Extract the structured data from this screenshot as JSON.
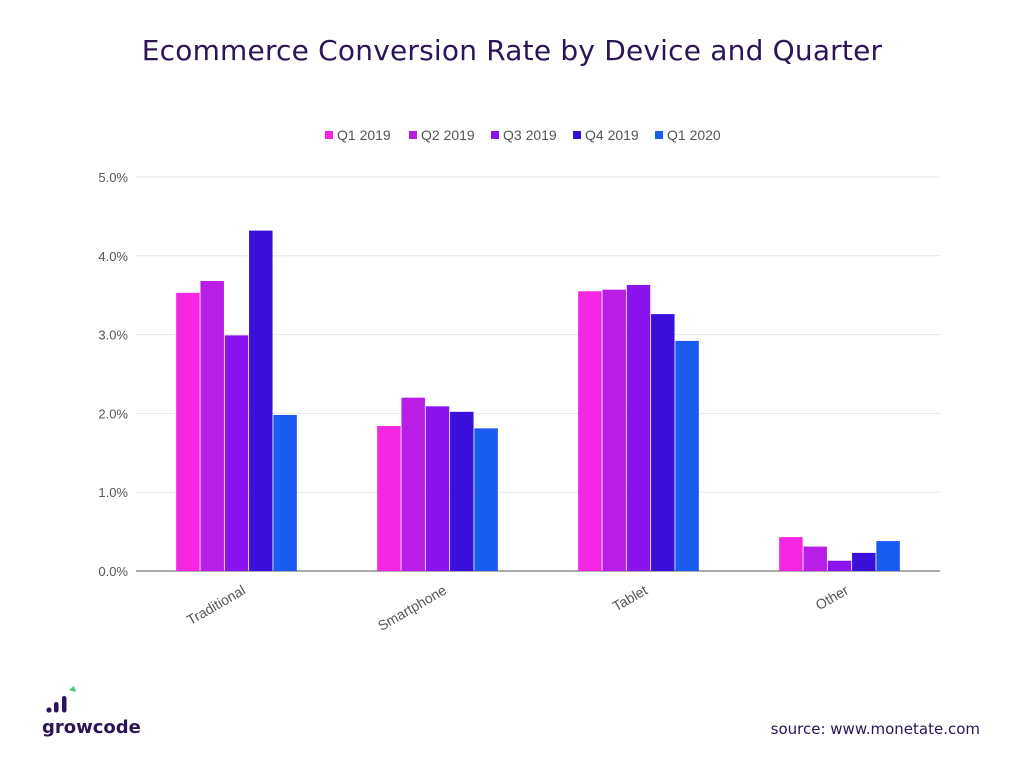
{
  "chart_data": {
    "type": "bar",
    "title": "Ecommerce Conversion Rate by Device and Quarter",
    "categories": [
      "Traditional",
      "Smartphone",
      "Tablet",
      "Other"
    ],
    "series": [
      {
        "name": "Q1 2019",
        "color": "#f527e3",
        "values": [
          3.53,
          1.84,
          3.55,
          0.43
        ]
      },
      {
        "name": "Q2 2019",
        "color": "#b91ee6",
        "values": [
          3.68,
          2.2,
          3.57,
          0.31
        ]
      },
      {
        "name": "Q3 2019",
        "color": "#8a14f0",
        "values": [
          2.99,
          2.09,
          3.63,
          0.13
        ]
      },
      {
        "name": "Q4 2019",
        "color": "#3a10da",
        "values": [
          4.32,
          2.02,
          3.26,
          0.23
        ]
      },
      {
        "name": "Q1 2020",
        "color": "#1a5cf0",
        "values": [
          1.98,
          1.81,
          2.92,
          0.38
        ]
      }
    ],
    "yticks": [
      "0.0%",
      "1.0%",
      "2.0%",
      "3.0%",
      "4.0%",
      "5.0%"
    ],
    "ylim": [
      0,
      5
    ],
    "grid": true,
    "legend": "top-center"
  },
  "footer": {
    "brand": "growcode",
    "source": "source: www.monetate.com"
  },
  "colors": {
    "title": "#2b1457",
    "brand_green": "#3bd16f",
    "axis": "#666666",
    "grid": "#e8e8e8"
  }
}
